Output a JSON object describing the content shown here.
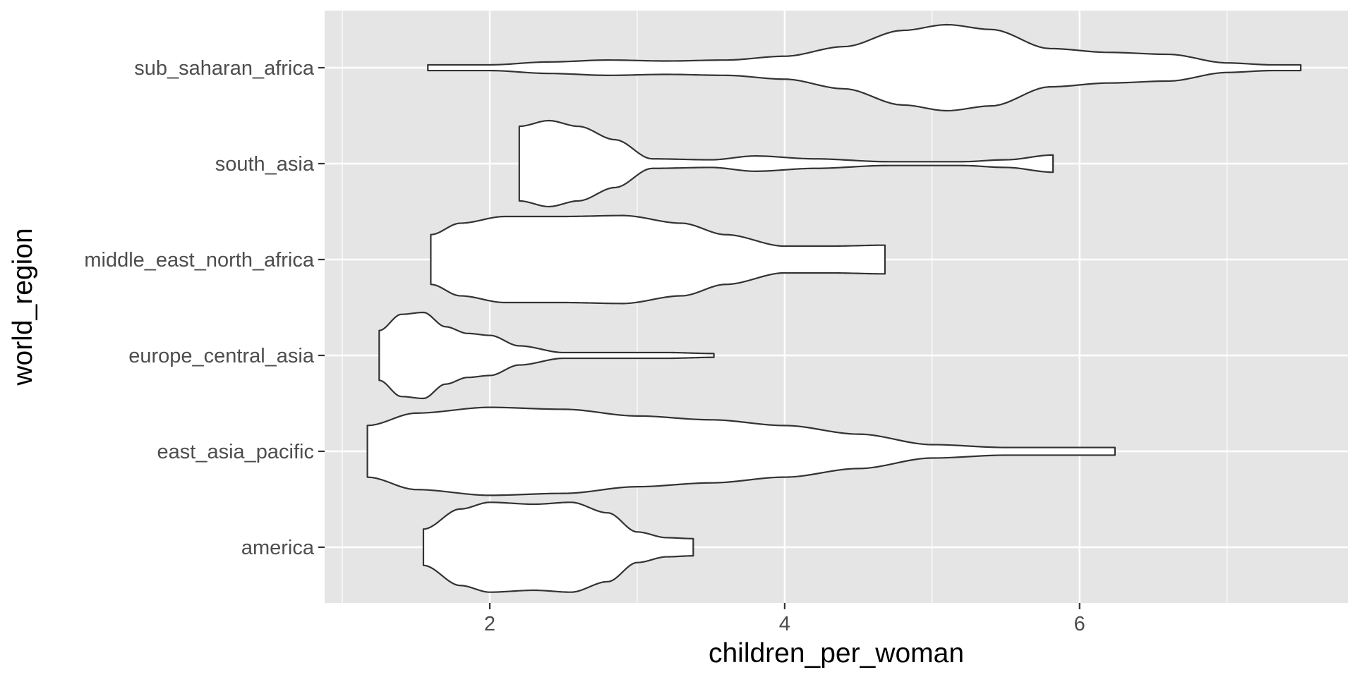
{
  "chart_data": {
    "type": "violin",
    "orientation": "horizontal",
    "xlabel": "children_per_woman",
    "ylabel": "world_region",
    "xlim": [
      0.88,
      7.82
    ],
    "x_ticks": [
      2,
      4,
      6
    ],
    "x_minor_ticks": [
      1,
      3,
      5,
      7
    ],
    "categories": [
      "america",
      "east_asia_pacific",
      "europe_central_asia",
      "middle_east_north_africa",
      "south_asia",
      "sub_saharan_africa"
    ],
    "grid": true,
    "legend": "none",
    "colors": {
      "panel": "#e5e5e5",
      "grid": "#ffffff",
      "violin_fill": "#ffffff",
      "violin_stroke": "#333333",
      "tick_label": "#4d4d4d",
      "axis_title": "#000000"
    },
    "series": [
      {
        "category": "america",
        "min": 1.55,
        "max": 3.38,
        "density_profile": [
          [
            1.55,
            0.19
          ],
          [
            1.8,
            0.4
          ],
          [
            2.0,
            0.47
          ],
          [
            2.3,
            0.45
          ],
          [
            2.55,
            0.47
          ],
          [
            2.8,
            0.36
          ],
          [
            3.0,
            0.16
          ],
          [
            3.2,
            0.1
          ],
          [
            3.38,
            0.09
          ]
        ]
      },
      {
        "category": "east_asia_pacific",
        "min": 1.17,
        "max": 6.24,
        "density_profile": [
          [
            1.17,
            0.27
          ],
          [
            1.5,
            0.4
          ],
          [
            2.0,
            0.46
          ],
          [
            2.5,
            0.44
          ],
          [
            3.0,
            0.37
          ],
          [
            3.5,
            0.33
          ],
          [
            4.0,
            0.27
          ],
          [
            4.5,
            0.18
          ],
          [
            5.0,
            0.07
          ],
          [
            5.5,
            0.04
          ],
          [
            6.0,
            0.04
          ],
          [
            6.24,
            0.04
          ]
        ]
      },
      {
        "category": "europe_central_asia",
        "min": 1.25,
        "max": 3.52,
        "density_profile": [
          [
            1.25,
            0.26
          ],
          [
            1.4,
            0.43
          ],
          [
            1.55,
            0.45
          ],
          [
            1.7,
            0.3
          ],
          [
            1.85,
            0.23
          ],
          [
            2.0,
            0.21
          ],
          [
            2.2,
            0.1
          ],
          [
            2.5,
            0.03
          ],
          [
            3.0,
            0.03
          ],
          [
            3.2,
            0.03
          ],
          [
            3.52,
            0.02
          ]
        ]
      },
      {
        "category": "middle_east_north_africa",
        "min": 1.6,
        "max": 4.68,
        "density_profile": [
          [
            1.6,
            0.26
          ],
          [
            1.8,
            0.38
          ],
          [
            2.1,
            0.45
          ],
          [
            2.5,
            0.45
          ],
          [
            2.9,
            0.46
          ],
          [
            3.3,
            0.38
          ],
          [
            3.6,
            0.26
          ],
          [
            4.0,
            0.14
          ],
          [
            4.3,
            0.14
          ],
          [
            4.68,
            0.15
          ]
        ]
      },
      {
        "category": "south_asia",
        "min": 2.2,
        "max": 5.82,
        "density_profile": [
          [
            2.2,
            0.39
          ],
          [
            2.4,
            0.45
          ],
          [
            2.6,
            0.39
          ],
          [
            2.85,
            0.25
          ],
          [
            3.1,
            0.05
          ],
          [
            3.5,
            0.04
          ],
          [
            3.8,
            0.08
          ],
          [
            4.2,
            0.05
          ],
          [
            4.7,
            0.02
          ],
          [
            5.2,
            0.02
          ],
          [
            5.5,
            0.04
          ],
          [
            5.82,
            0.09
          ]
        ]
      },
      {
        "category": "sub_saharan_africa",
        "min": 1.58,
        "max": 7.5,
        "density_profile": [
          [
            1.58,
            0.03
          ],
          [
            2.0,
            0.03
          ],
          [
            2.4,
            0.06
          ],
          [
            2.8,
            0.08
          ],
          [
            3.2,
            0.07
          ],
          [
            3.6,
            0.08
          ],
          [
            4.0,
            0.12
          ],
          [
            4.4,
            0.22
          ],
          [
            4.8,
            0.39
          ],
          [
            5.1,
            0.45
          ],
          [
            5.4,
            0.4
          ],
          [
            5.8,
            0.2
          ],
          [
            6.2,
            0.16
          ],
          [
            6.6,
            0.14
          ],
          [
            7.0,
            0.05
          ],
          [
            7.3,
            0.03
          ],
          [
            7.5,
            0.03
          ]
        ]
      }
    ]
  }
}
